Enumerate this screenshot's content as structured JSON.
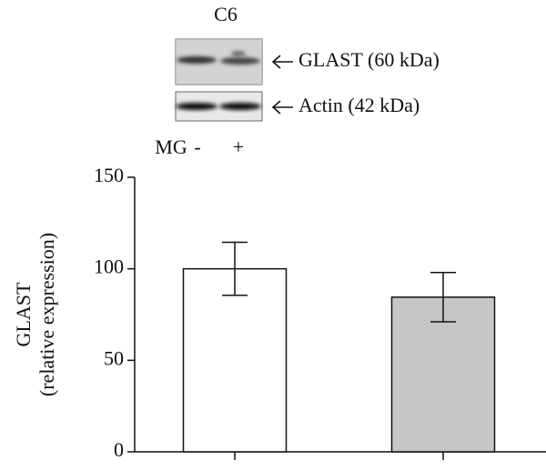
{
  "chart_data": {
    "type": "bar",
    "title": "C6",
    "annotations": [
      "GLAST (60 kDa)",
      "Actin (42 kDa)"
    ],
    "treatment_label": "MG",
    "treatment_levels": [
      "-",
      "+"
    ],
    "ylabel": [
      "GLAST",
      "(relative expression)"
    ],
    "categories": [
      null,
      null
    ],
    "values": [
      100,
      84.5
    ],
    "errors": [
      14.5,
      13.5
    ],
    "colors": [
      "#ffffff",
      "#c8c6c4"
    ],
    "ylim": [
      0,
      150
    ],
    "yticks": [
      0,
      50,
      100,
      150
    ],
    "grid": false
  }
}
